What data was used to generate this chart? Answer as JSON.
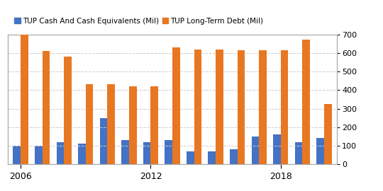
{
  "years": [
    2006,
    2007,
    2008,
    2009,
    2010,
    2011,
    2012,
    2013,
    2014,
    2015,
    2016,
    2017,
    2018,
    2019,
    2020
  ],
  "cash": [
    100,
    100,
    120,
    110,
    250,
    130,
    120,
    130,
    70,
    70,
    80,
    150,
    160,
    120,
    140
  ],
  "debt": [
    700,
    610,
    580,
    430,
    430,
    420,
    420,
    630,
    620,
    620,
    615,
    615,
    615,
    670,
    325
  ],
  "cash_color": "#4472c4",
  "debt_color": "#e87722",
  "legend_labels": [
    "TUP Cash And Cash Equivalents (Mil)",
    "TUP Long-Term Debt (Mil)"
  ],
  "ylim_right": [
    0,
    700
  ],
  "yticks_right": [
    0,
    100,
    200,
    300,
    400,
    500,
    600,
    700
  ],
  "grid_color": "#cccccc",
  "bg_color": "#ffffff",
  "bar_width": 0.35,
  "x_label_years": [
    2006,
    2012,
    2018
  ]
}
